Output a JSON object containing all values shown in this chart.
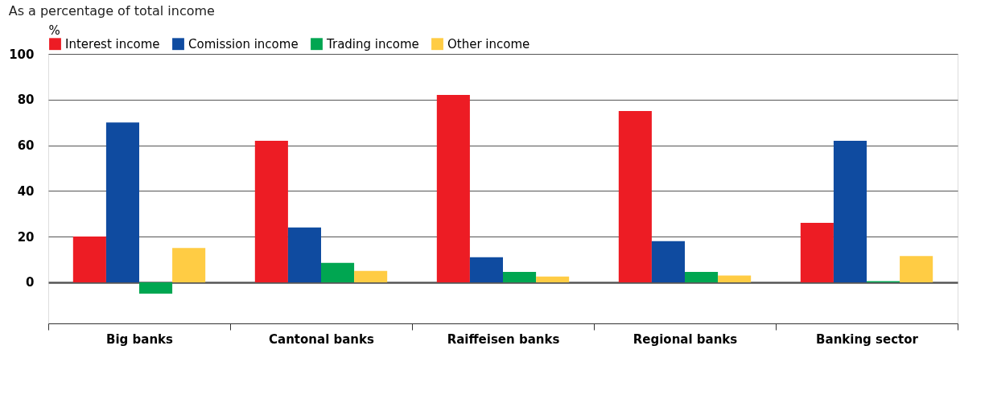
{
  "chart_data": {
    "type": "bar",
    "subtitle": "As a percentage of total income",
    "ylabel": "%",
    "categories": [
      "Big banks",
      "Cantonal banks",
      "Raiffeisen banks",
      "Regional banks",
      "Banking sector"
    ],
    "series": [
      {
        "name": "Interest income",
        "color": "#ed1c24",
        "values": [
          20,
          62,
          82,
          75,
          26
        ]
      },
      {
        "name": "Comission income",
        "color": "#0f4ba0",
        "values": [
          70,
          24,
          11,
          18,
          62
        ]
      },
      {
        "name": "Trading income",
        "color": "#00a651",
        "values": [
          -5,
          8.5,
          4.5,
          4.5,
          0.5
        ]
      },
      {
        "name": "Other income",
        "color": "#ffcc44",
        "values": [
          15,
          5,
          2.5,
          3,
          11.5
        ]
      }
    ],
    "ylim": [
      -18,
      100
    ],
    "yticks": [
      0,
      20,
      40,
      60,
      80,
      100
    ],
    "grid": "y",
    "legend": "top left"
  }
}
